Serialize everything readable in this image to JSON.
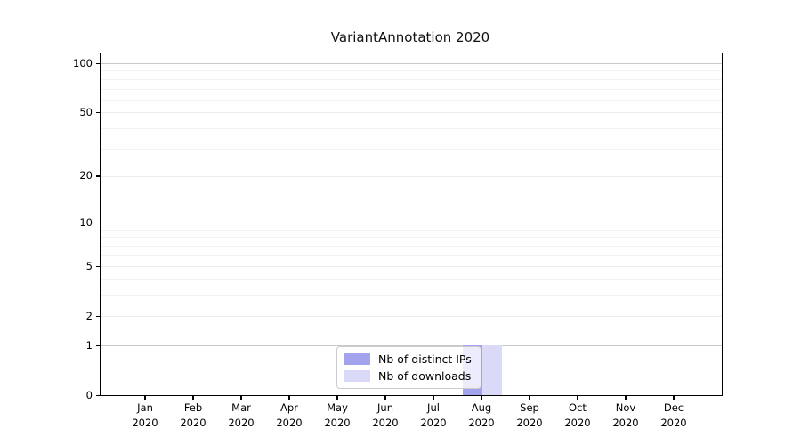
{
  "chart_data": {
    "type": "bar",
    "title": "VariantAnnotation 2020",
    "categories": [
      {
        "month": "Jan",
        "year": "2020"
      },
      {
        "month": "Feb",
        "year": "2020"
      },
      {
        "month": "Mar",
        "year": "2020"
      },
      {
        "month": "Apr",
        "year": "2020"
      },
      {
        "month": "May",
        "year": "2020"
      },
      {
        "month": "Jun",
        "year": "2020"
      },
      {
        "month": "Jul",
        "year": "2020"
      },
      {
        "month": "Aug",
        "year": "2020"
      },
      {
        "month": "Sep",
        "year": "2020"
      },
      {
        "month": "Oct",
        "year": "2020"
      },
      {
        "month": "Nov",
        "year": "2020"
      },
      {
        "month": "Dec",
        "year": "2020"
      }
    ],
    "series": [
      {
        "name": "Nb of distinct IPs",
        "color": "#a2a2ed",
        "values": [
          0,
          0,
          0,
          0,
          0,
          0,
          0,
          1,
          0,
          0,
          0,
          0
        ]
      },
      {
        "name": "Nb of downloads",
        "color": "#dadaf8",
        "values": [
          0,
          0,
          0,
          0,
          0,
          0,
          0,
          1,
          0,
          0,
          0,
          0
        ]
      }
    ],
    "y_axis": {
      "scale": "log1p",
      "ticks": [
        0,
        1,
        2,
        5,
        10,
        20,
        50,
        100
      ],
      "major_gridline_values": [
        1,
        10,
        100
      ],
      "labeled_gridline_values": [
        2,
        5,
        20,
        50
      ],
      "minor_gridline_values": [
        3,
        4,
        6,
        7,
        8,
        9,
        30,
        40,
        60,
        70,
        80,
        90
      ],
      "range": [
        0,
        114.7
      ]
    },
    "legend": {
      "position": "lower center",
      "entries": [
        "Nb of distinct IPs",
        "Nb of downloads"
      ]
    },
    "grid": true
  },
  "colors": {
    "major_gridline": "#c9c9c9",
    "labeled_gridline": "#ececec",
    "minor_gridline": "#f2f2f2",
    "axis": "#000000",
    "text": "#000000",
    "legend_border": "#cccccc"
  }
}
